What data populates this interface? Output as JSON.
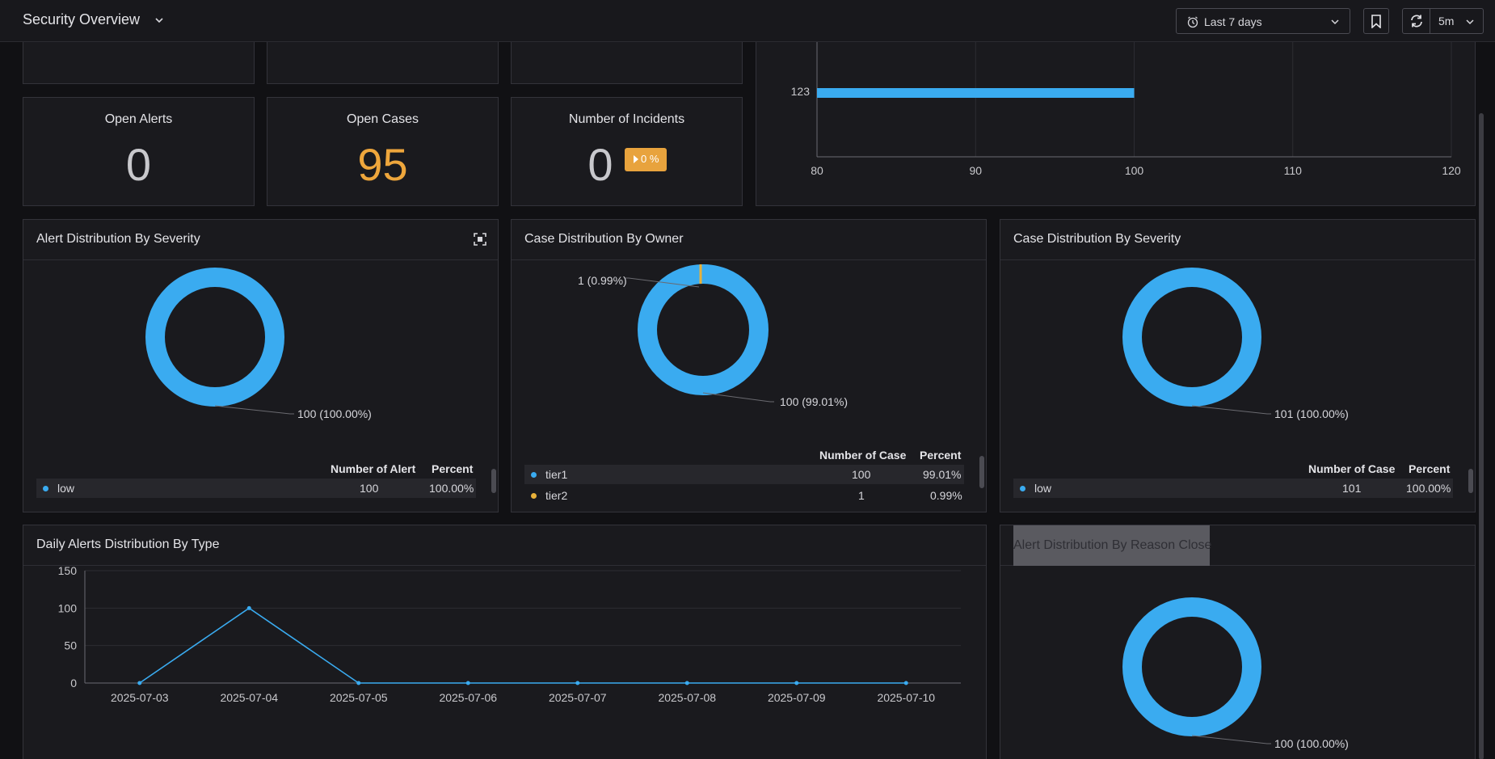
{
  "header": {
    "title": "Security Overview",
    "time_range": "Last 7 days",
    "refresh_interval": "5m"
  },
  "stats": {
    "open_alerts": {
      "label": "Open Alerts",
      "value": "0"
    },
    "open_cases": {
      "label": "Open Cases",
      "value": "95"
    },
    "incidents": {
      "label": "Number of Incidents",
      "value": "0",
      "badge": "0 %"
    }
  },
  "colors": {
    "accent": "#3aabf0",
    "orange": "#eea63c",
    "secondary": "#e8b13a"
  },
  "top_bar_chart": {
    "chart_data": {
      "type": "bar",
      "orientation": "horizontal",
      "categories": [
        "123"
      ],
      "values": [
        100
      ],
      "xlim": [
        80,
        120
      ],
      "xticks": [
        "80",
        "90",
        "100",
        "110",
        "120"
      ]
    }
  },
  "alert_severity": {
    "title": "Alert Distribution By Severity",
    "callout": "100 (100.00%)",
    "headers": [
      "Number of Alert",
      "Percent"
    ],
    "rows": [
      {
        "name": "low",
        "count": "100",
        "percent": "100.00%"
      }
    ],
    "chart_data": {
      "type": "pie",
      "labels": [
        "low"
      ],
      "values": [
        100
      ]
    }
  },
  "case_owner": {
    "title": "Case Distribution By Owner",
    "callout_small": "1 (0.99%)",
    "callout_large": "100 (99.01%)",
    "headers": [
      "Number of Case",
      "Percent"
    ],
    "rows": [
      {
        "name": "tier1",
        "count": "100",
        "percent": "99.01%"
      },
      {
        "name": "tier2",
        "count": "1",
        "percent": "0.99%"
      }
    ],
    "chart_data": {
      "type": "pie",
      "labels": [
        "tier1",
        "tier2"
      ],
      "values": [
        100,
        1
      ]
    }
  },
  "case_severity": {
    "title": "Case Distribution By Severity",
    "callout": "101 (100.00%)",
    "headers": [
      "Number of Case",
      "Percent"
    ],
    "rows": [
      {
        "name": "low",
        "count": "101",
        "percent": "100.00%"
      }
    ],
    "chart_data": {
      "type": "pie",
      "labels": [
        "low"
      ],
      "values": [
        101
      ]
    }
  },
  "daily_alerts": {
    "title": "Daily Alerts Distribution By Type",
    "chart_data": {
      "type": "line",
      "x": [
        "2025-07-03",
        "2025-07-04",
        "2025-07-05",
        "2025-07-06",
        "2025-07-07",
        "2025-07-08",
        "2025-07-09",
        "2025-07-10"
      ],
      "series": [
        {
          "values": [
            0,
            100,
            0,
            0,
            0,
            0,
            0,
            0
          ]
        }
      ],
      "ylim": [
        0,
        150
      ],
      "yticks": [
        "0",
        "50",
        "100",
        "150"
      ]
    }
  },
  "reason_close": {
    "title": "Alert Distribution By Reason Close",
    "callout": "100 (100.00%)",
    "chart_data": {
      "type": "pie",
      "values": [
        100
      ]
    }
  }
}
